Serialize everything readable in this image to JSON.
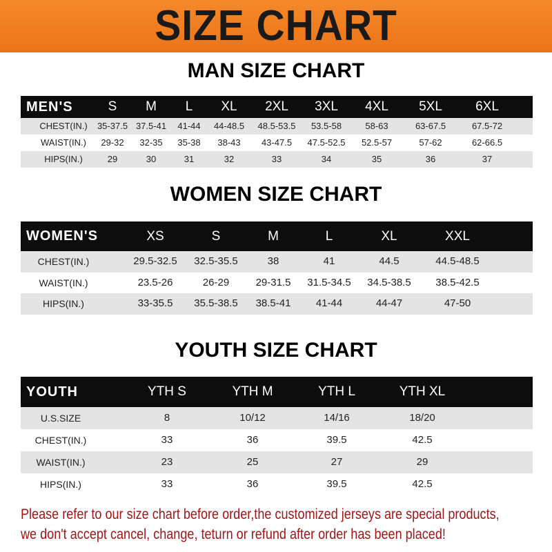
{
  "title": "SIZE CHART",
  "colors": {
    "banner": "#f07f1e",
    "header_row": "#0d0d0d",
    "stripe": "#e4e4e4",
    "note": "#a31515"
  },
  "men": {
    "title": "MAN SIZE CHART",
    "header": [
      "MEN'S",
      "S",
      "M",
      "L",
      "XL",
      "2XL",
      "3XL",
      "4XL",
      "5XL",
      "6XL"
    ],
    "rows": [
      [
        "CHEST(IN.)",
        "35-37.5",
        "37.5-41",
        "41-44",
        "44-48.5",
        "48.5-53.5",
        "53.5-58",
        "58-63",
        "63-67.5",
        "67.5-72"
      ],
      [
        "WAIST(IN.)",
        "29-32",
        "32-35",
        "35-38",
        "38-43",
        "43-47.5",
        "47.5-52.5",
        "52.5-57",
        "57-62",
        "62-66.5"
      ],
      [
        "HIPS(IN.)",
        "29",
        "30",
        "31",
        "32",
        "33",
        "34",
        "35",
        "36",
        "37"
      ]
    ]
  },
  "women": {
    "title": "WOMEN SIZE CHART",
    "header": [
      "WOMEN'S",
      "XS",
      "S",
      "M",
      "L",
      "XL",
      "XXL"
    ],
    "rows": [
      [
        "CHEST(IN.)",
        "29.5-32.5",
        "32.5-35.5",
        "38",
        "41",
        "44.5",
        "44.5-48.5"
      ],
      [
        "WAIST(IN.)",
        "23.5-26",
        "26-29",
        "29-31.5",
        "31.5-34.5",
        "34.5-38.5",
        "38.5-42.5"
      ],
      [
        "HIPS(IN.)",
        "33-35.5",
        "35.5-38.5",
        "38.5-41",
        "41-44",
        "44-47",
        "47-50"
      ]
    ]
  },
  "youth": {
    "title": "YOUTH SIZE CHART",
    "header": [
      "YOUTH",
      "YTH S",
      "YTH M",
      "YTH L",
      "YTH XL"
    ],
    "rows": [
      [
        "U.S.SIZE",
        "8",
        "10/12",
        "14/16",
        "18/20"
      ],
      [
        "CHEST(IN.)",
        "33",
        "36",
        "39.5",
        "42.5"
      ],
      [
        "WAIST(IN.)",
        "23",
        "25",
        "27",
        "29"
      ],
      [
        "HIPS(IN.)",
        "33",
        "36",
        "39.5",
        "42.5"
      ]
    ]
  },
  "note": {
    "line1": "Please refer to our size chart before order,the customized jerseys are special products,",
    "line2": "we don't accept cancel, change, teturn or refund after order has been placed!"
  }
}
